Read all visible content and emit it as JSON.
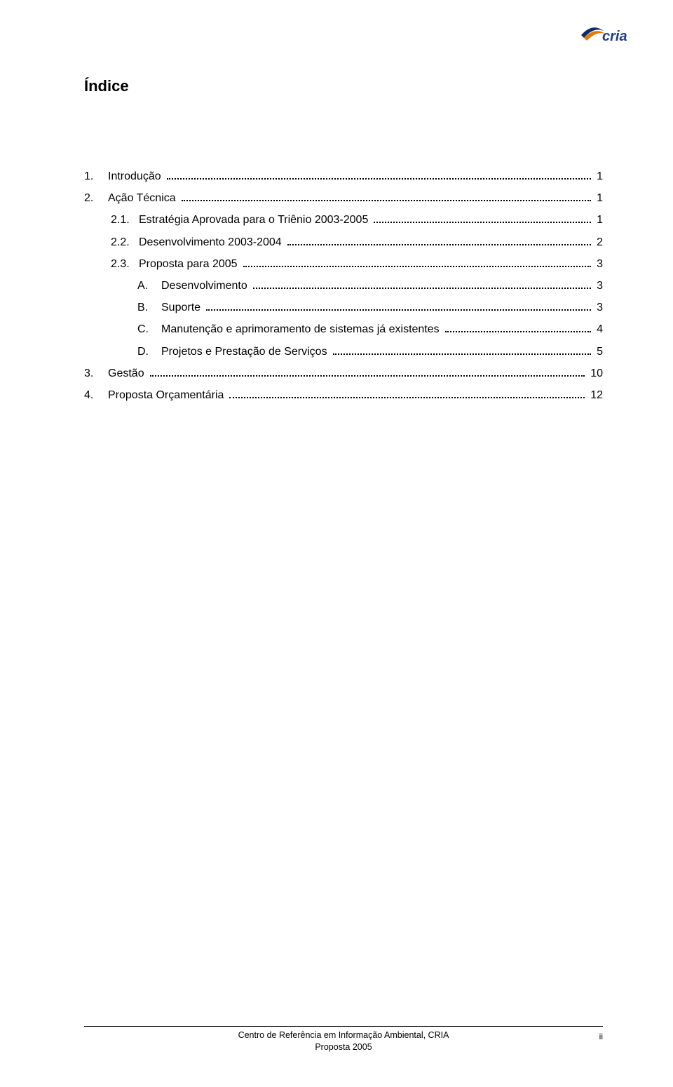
{
  "logo": {
    "text": "cria",
    "text_color": "#1b3e8c",
    "swoosh_color_dark": "#0a2a6b",
    "swoosh_color_orange": "#e07b00"
  },
  "title": "Índice",
  "toc": [
    {
      "level": 0,
      "num": "1.",
      "label": "Introdução",
      "page": "1"
    },
    {
      "level": 0,
      "num": "2.",
      "label": "Ação Técnica",
      "page": "1"
    },
    {
      "level": 1,
      "num": "2.1.",
      "label": "Estratégia Aprovada para o Triênio 2003-2005",
      "page": "1"
    },
    {
      "level": 1,
      "num": "2.2.",
      "label": "Desenvolvimento 2003-2004",
      "page": "2"
    },
    {
      "level": 1,
      "num": "2.3.",
      "label": "Proposta para 2005",
      "page": "3"
    },
    {
      "level": 2,
      "num": "A.",
      "label": "Desenvolvimento",
      "page": "3"
    },
    {
      "level": 2,
      "num": "B.",
      "label": "Suporte",
      "page": "3"
    },
    {
      "level": 2,
      "num": "C.",
      "label": "Manutenção e aprimoramento de sistemas já existentes",
      "page": "4"
    },
    {
      "level": 2,
      "num": "D.",
      "label": "Projetos e Prestação de Serviços",
      "page": "5"
    },
    {
      "level": 0,
      "num": "3.",
      "label": "Gestão",
      "page": "10"
    },
    {
      "level": 0,
      "num": "4.",
      "label": "Proposta Orçamentária",
      "page": "12"
    }
  ],
  "footer": {
    "line1": "Centro de Referência em Informação Ambiental, CRIA",
    "line2": "Proposta 2005",
    "pagenum": "ii"
  }
}
